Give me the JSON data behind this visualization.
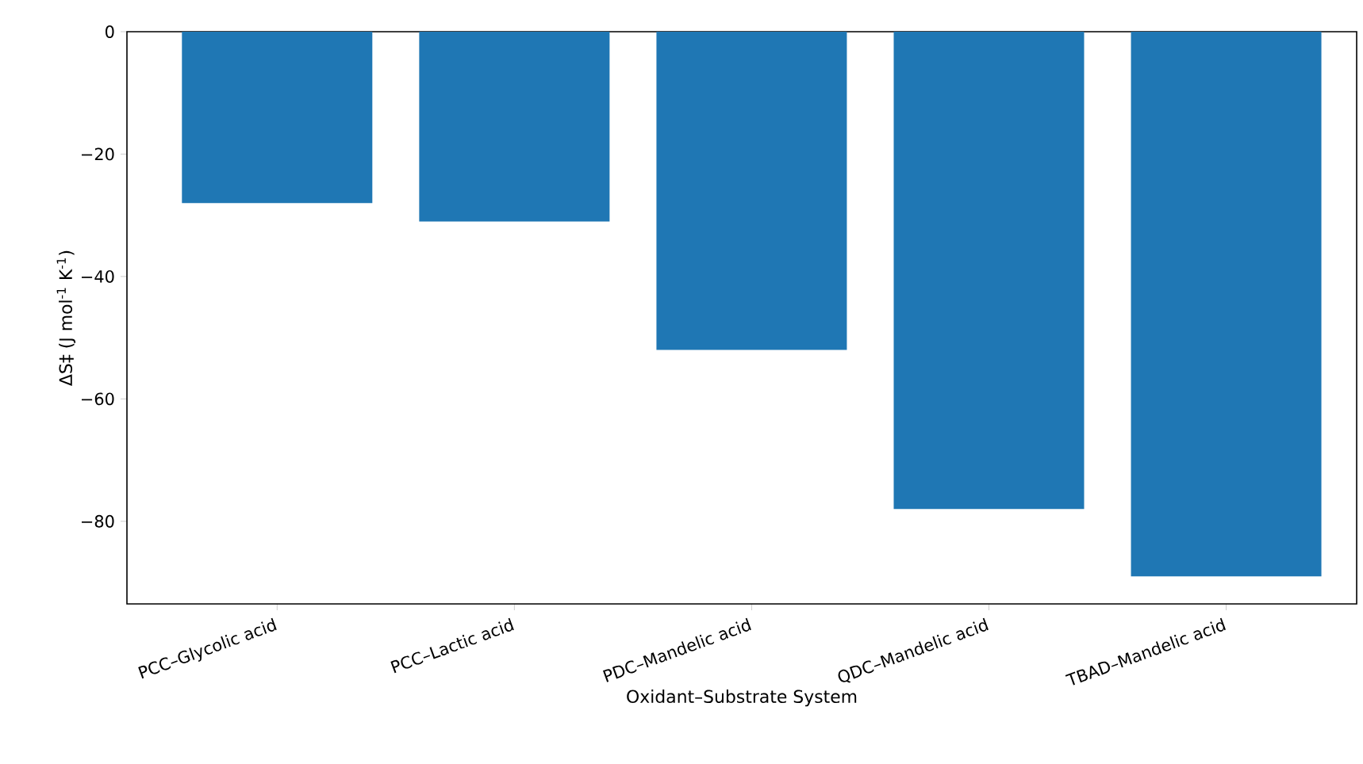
{
  "chart_data": {
    "type": "bar",
    "xlabel": "Oxidant–Substrate System",
    "ylabel": "ΔS‡ (J mol$^{-1}$ K$^{-1}$)",
    "categories": [
      "PCC–Glycolic acid",
      "PCC–Lactic acid",
      "PDC–Mandelic acid",
      "QDC–Mandelic acid",
      "TBAD–Mandelic acid"
    ],
    "values": [
      -28,
      -31,
      -52,
      -78,
      -89
    ],
    "color": "#1f77b4",
    "ylim": [
      -93.5,
      0
    ],
    "yticks": [
      {
        "value": -80,
        "label": "−80"
      },
      {
        "value": -60,
        "label": "−60"
      },
      {
        "value": -40,
        "label": "−40"
      },
      {
        "value": -20,
        "label": "−20"
      },
      0
    ]
  }
}
